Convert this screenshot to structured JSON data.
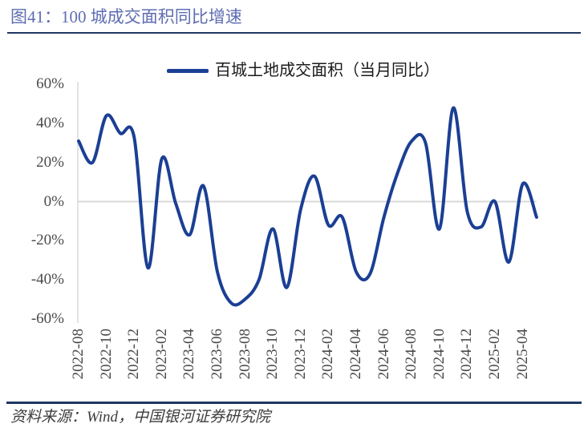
{
  "figure": {
    "title": "图41：100 城成交面积同比增速",
    "source": "资料来源：Wind，中国银河证券研究院"
  },
  "colors": {
    "line": "#1B3F94",
    "divider": "#1F3864",
    "title_text": "#5E6DB2",
    "grid": "#D9D9D9",
    "tick_text": "#4a4a4a"
  },
  "chart_data": {
    "type": "line",
    "title": "",
    "legend": [
      "百城土地成交面积（当月同比）"
    ],
    "legend_position": "top-center",
    "grid": "zero-line-only",
    "ylim": [
      -60,
      60
    ],
    "yticks": [
      {
        "label": "60%",
        "value": 60
      },
      {
        "label": "40%",
        "value": 40
      },
      {
        "label": "20%",
        "value": 20
      },
      {
        "label": "0%",
        "value": 0
      },
      {
        "label": "-20%",
        "value": -20
      },
      {
        "label": "-40%",
        "value": -40
      },
      {
        "label": "-60%",
        "value": -60
      }
    ],
    "x": [
      "2022-08",
      "2022-09",
      "2022-10",
      "2022-11",
      "2022-12",
      "2023-01",
      "2023-02",
      "2023-03",
      "2023-04",
      "2023-05",
      "2023-06",
      "2023-07",
      "2023-08",
      "2023-09",
      "2023-10",
      "2023-11",
      "2023-12",
      "2024-01",
      "2024-02",
      "2024-03",
      "2024-04",
      "2024-05",
      "2024-06",
      "2024-07",
      "2024-08",
      "2024-09",
      "2024-10",
      "2024-11",
      "2024-12",
      "2025-01",
      "2025-02",
      "2025-03",
      "2025-04",
      "2025-05"
    ],
    "xtick_labels": [
      "2022-08",
      "2022-10",
      "2022-12",
      "2023-02",
      "2023-04",
      "2023-06",
      "2023-08",
      "2023-10",
      "2023-12",
      "2024-02",
      "2024-04",
      "2024-06",
      "2024-08",
      "2024-10",
      "2024-12",
      "2025-02",
      "2025-04"
    ],
    "series": [
      {
        "name": "百城土地成交面积（当月同比）",
        "unit": "%",
        "values": [
          31,
          20,
          44,
          35,
          33,
          -34,
          22,
          -1,
          -17,
          8,
          -36,
          -52,
          -50,
          -40,
          -14,
          -44,
          -4,
          13,
          -12,
          -8,
          -36,
          -37,
          -8,
          15,
          31,
          30,
          -14,
          48,
          -5,
          -13,
          0,
          -31,
          9,
          -8
        ]
      }
    ]
  }
}
